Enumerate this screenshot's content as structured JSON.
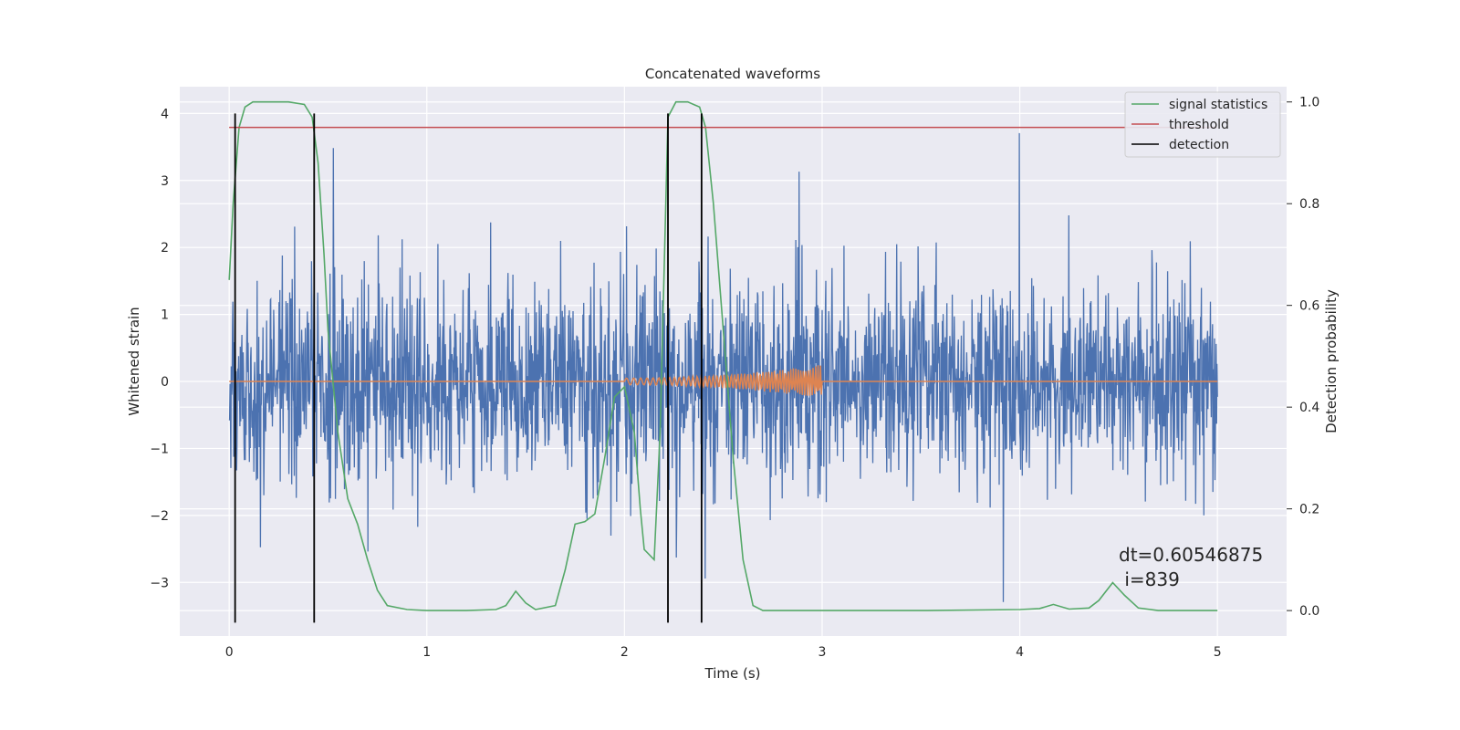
{
  "chart_data": {
    "type": "line",
    "title": "Concatenated waveforms",
    "xlabel": "Time (s)",
    "ylabel_left": "Whitened strain",
    "ylabel_right": "Detection probability",
    "xlim": [
      -0.25,
      5.35
    ],
    "ylim_left": [
      -3.8,
      4.4
    ],
    "ylim_right": [
      -0.05,
      1.03
    ],
    "xticks": [
      0,
      1,
      2,
      3,
      4,
      5
    ],
    "xtick_labels": [
      "0",
      "1",
      "2",
      "3",
      "4",
      "5"
    ],
    "yticks_left": [
      -3,
      -2,
      -1,
      0,
      1,
      2,
      3,
      4
    ],
    "ytick_labels_left": [
      "−3",
      "−2",
      "−1",
      "0",
      "1",
      "2",
      "3",
      "4"
    ],
    "yticks_right": [
      0.0,
      0.2,
      0.4,
      0.6,
      0.8,
      1.0
    ],
    "ytick_labels_right": [
      "0.0",
      "0.2",
      "0.4",
      "0.6",
      "0.8",
      "1.0"
    ],
    "grid": true,
    "legend_position": "top-right",
    "legend": [
      {
        "label": "signal statistics",
        "color": "#55a868"
      },
      {
        "label": "threshold",
        "color": "#c44e52"
      },
      {
        "label": "detection",
        "color": "#000000"
      }
    ],
    "series": [
      {
        "name": "whitened strain",
        "axis": "left",
        "color": "#4c72b0",
        "x_range": [
          0,
          5
        ],
        "envelope_approx": [
          1.2,
          1.3,
          1.1,
          1.2,
          1.2,
          1.3,
          1.2,
          1.2,
          1.1,
          1.2,
          1.2
        ],
        "max_peak": 4.0,
        "min_peak": -3.6
      },
      {
        "name": "injected waveform",
        "axis": "left",
        "color": "#dd8452",
        "x_range": [
          0,
          5
        ],
        "chirp_start": 2.0,
        "chirp_end": 3.0,
        "chirp_max_amplitude": 0.25
      },
      {
        "name": "signal statistics",
        "axis": "right",
        "color": "#55a868",
        "x": [
          0.0,
          0.02,
          0.05,
          0.08,
          0.12,
          0.2,
          0.3,
          0.38,
          0.42,
          0.45,
          0.48,
          0.5,
          0.55,
          0.6,
          0.65,
          0.7,
          0.75,
          0.8,
          0.9,
          1.0,
          1.2,
          1.35,
          1.4,
          1.45,
          1.5,
          1.55,
          1.65,
          1.7,
          1.75,
          1.8,
          1.85,
          1.9,
          1.95,
          2.0,
          2.05,
          2.08,
          2.1,
          2.15,
          2.18,
          2.22,
          2.26,
          2.32,
          2.38,
          2.41,
          2.45,
          2.5,
          2.55,
          2.6,
          2.65,
          2.7,
          2.8,
          3.0,
          3.5,
          4.0,
          4.1,
          4.17,
          4.25,
          4.35,
          4.4,
          4.47,
          4.53,
          4.6,
          4.7,
          5.0
        ],
        "y": [
          0.65,
          0.8,
          0.95,
          0.99,
          1.0,
          1.0,
          1.0,
          0.995,
          0.97,
          0.88,
          0.7,
          0.55,
          0.35,
          0.22,
          0.17,
          0.1,
          0.04,
          0.01,
          0.002,
          0.0,
          0.0,
          0.002,
          0.01,
          0.038,
          0.015,
          0.002,
          0.01,
          0.08,
          0.17,
          0.175,
          0.19,
          0.3,
          0.42,
          0.44,
          0.35,
          0.2,
          0.12,
          0.1,
          0.35,
          0.97,
          1.0,
          1.0,
          0.99,
          0.95,
          0.8,
          0.55,
          0.3,
          0.1,
          0.01,
          0.0,
          0.0,
          0.0,
          0.0,
          0.002,
          0.004,
          0.012,
          0.003,
          0.005,
          0.02,
          0.055,
          0.03,
          0.005,
          0.0,
          0.0
        ]
      },
      {
        "name": "threshold",
        "axis": "right",
        "color": "#c44e52",
        "x": [
          0,
          5
        ],
        "y": [
          0.95,
          0.95
        ]
      },
      {
        "name": "detection",
        "axis": "left",
        "color": "#000000",
        "x_positions": [
          0.03,
          0.43,
          2.22,
          2.39
        ]
      }
    ]
  },
  "annotation": {
    "dt_text": "dt=0.60546875",
    "i_text": " i=839"
  }
}
